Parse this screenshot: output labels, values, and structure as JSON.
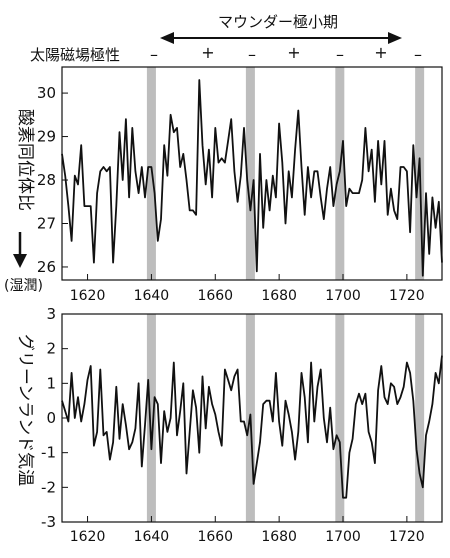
{
  "header": {
    "maunder_label": "マウンダー極小期",
    "polarity_label": "太陽磁場極性",
    "polarity_signs": [
      "–",
      "+",
      "–",
      "+",
      "–",
      "+",
      "–"
    ]
  },
  "chart_data": [
    {
      "type": "line",
      "ylabel": "酸素同位体比",
      "wet_label": "(湿潤)",
      "xlim": [
        1612,
        1731
      ],
      "ylim": [
        25.7,
        30.6
      ],
      "x_ticks": [
        1620,
        1640,
        1660,
        1680,
        1700,
        1720
      ],
      "y_ticks": [
        26,
        27,
        28,
        29,
        30
      ],
      "shaded_years": [
        1640,
        1671,
        1699,
        1724
      ],
      "x": [
        1612,
        1613,
        1614,
        1615,
        1616,
        1617,
        1618,
        1619,
        1620,
        1621,
        1622,
        1623,
        1624,
        1625,
        1626,
        1627,
        1628,
        1629,
        1630,
        1631,
        1632,
        1633,
        1634,
        1635,
        1636,
        1637,
        1638,
        1639,
        1640,
        1641,
        1642,
        1643,
        1644,
        1645,
        1646,
        1647,
        1648,
        1649,
        1650,
        1651,
        1652,
        1653,
        1654,
        1655,
        1656,
        1657,
        1658,
        1659,
        1660,
        1661,
        1662,
        1663,
        1664,
        1665,
        1666,
        1667,
        1668,
        1669,
        1670,
        1671,
        1672,
        1673,
        1674,
        1675,
        1676,
        1677,
        1678,
        1679,
        1680,
        1681,
        1682,
        1683,
        1684,
        1685,
        1686,
        1687,
        1688,
        1689,
        1690,
        1691,
        1692,
        1693,
        1694,
        1695,
        1696,
        1697,
        1698,
        1699,
        1700,
        1701,
        1702,
        1703,
        1704,
        1705,
        1706,
        1707,
        1708,
        1709,
        1710,
        1711,
        1712,
        1713,
        1714,
        1715,
        1716,
        1717,
        1718,
        1719,
        1720,
        1721,
        1722,
        1723,
        1724,
        1725,
        1726,
        1727,
        1728,
        1729,
        1730,
        1731
      ],
      "y": [
        28.6,
        28.1,
        27.4,
        26.6,
        28.1,
        27.9,
        28.8,
        27.4,
        27.4,
        27.4,
        26.1,
        27.7,
        28.2,
        28.3,
        28.2,
        28.3,
        26.1,
        27.4,
        29.1,
        28.0,
        29.4,
        27.6,
        29.2,
        28.2,
        27.7,
        28.3,
        27.6,
        28.3,
        28.3,
        27.7,
        26.6,
        27.1,
        28.8,
        28.1,
        29.5,
        29.1,
        29.2,
        28.3,
        28.6,
        28.0,
        27.3,
        27.3,
        27.2,
        30.3,
        28.8,
        27.9,
        28.7,
        27.6,
        29.2,
        28.4,
        28.5,
        28.4,
        28.9,
        29.4,
        28.2,
        27.5,
        28.1,
        29.2,
        28.0,
        27.3,
        28.0,
        25.9,
        28.6,
        26.9,
        28.0,
        27.3,
        28.1,
        27.6,
        29.3,
        28.4,
        27.0,
        28.2,
        27.6,
        28.7,
        29.6,
        28.3,
        27.2,
        28.3,
        27.6,
        28.2,
        28.2,
        27.6,
        27.1,
        27.8,
        28.3,
        27.4,
        27.9,
        28.2,
        28.9,
        27.4,
        27.8,
        27.7,
        27.7,
        27.7,
        28.0,
        29.2,
        28.2,
        28.7,
        27.5,
        28.9,
        27.9,
        28.9,
        27.2,
        27.8,
        27.3,
        27.1,
        28.3,
        28.3,
        28.2,
        26.8,
        28.8,
        27.6,
        28.5,
        25.8,
        27.7,
        26.3,
        27.6,
        26.9,
        27.5,
        26.1
      ]
    },
    {
      "type": "line",
      "ylabel": "グリーンランド気温",
      "xlim": [
        1612,
        1731
      ],
      "ylim": [
        -3,
        3
      ],
      "x_ticks": [
        1620,
        1640,
        1660,
        1680,
        1700,
        1720
      ],
      "y_ticks": [
        -3,
        -2,
        -1,
        0,
        1,
        2,
        3
      ],
      "shaded_years": [
        1640,
        1671,
        1699,
        1724
      ],
      "x": [
        1612,
        1613,
        1614,
        1615,
        1616,
        1617,
        1618,
        1619,
        1620,
        1621,
        1622,
        1623,
        1624,
        1625,
        1626,
        1627,
        1628,
        1629,
        1630,
        1631,
        1632,
        1633,
        1634,
        1635,
        1636,
        1637,
        1638,
        1639,
        1640,
        1641,
        1642,
        1643,
        1644,
        1645,
        1646,
        1647,
        1648,
        1649,
        1650,
        1651,
        1652,
        1653,
        1654,
        1655,
        1656,
        1657,
        1658,
        1659,
        1660,
        1661,
        1662,
        1663,
        1664,
        1665,
        1666,
        1667,
        1668,
        1669,
        1670,
        1671,
        1672,
        1673,
        1674,
        1675,
        1676,
        1677,
        1678,
        1679,
        1680,
        1681,
        1682,
        1683,
        1684,
        1685,
        1686,
        1687,
        1688,
        1689,
        1690,
        1691,
        1692,
        1693,
        1694,
        1695,
        1696,
        1697,
        1698,
        1699,
        1700,
        1701,
        1702,
        1703,
        1704,
        1705,
        1706,
        1707,
        1708,
        1709,
        1710,
        1711,
        1712,
        1713,
        1714,
        1715,
        1716,
        1717,
        1718,
        1719,
        1720,
        1721,
        1722,
        1723,
        1724,
        1725,
        1726,
        1727,
        1728,
        1729,
        1730,
        1731
      ],
      "y": [
        0.5,
        0.2,
        -0.1,
        1.3,
        0.0,
        0.6,
        -0.1,
        0.4,
        1.1,
        1.5,
        -0.8,
        -0.4,
        1.4,
        -0.5,
        -0.4,
        -1.2,
        -0.7,
        0.9,
        -0.6,
        0.4,
        -0.2,
        -0.9,
        -0.7,
        -0.3,
        1.0,
        -1.4,
        -0.2,
        1.1,
        -0.9,
        0.6,
        0.4,
        -1.3,
        0.2,
        -0.4,
        0.0,
        1.6,
        -0.5,
        0.2,
        1.0,
        -1.6,
        -0.4,
        0.8,
        0.3,
        -1.0,
        1.2,
        -0.3,
        0.9,
        0.4,
        0.1,
        -0.4,
        -0.8,
        1.4,
        1.1,
        0.8,
        1.2,
        1.4,
        -0.1,
        -0.1,
        -0.5,
        0.1,
        -1.9,
        -1.3,
        -0.7,
        0.4,
        0.5,
        0.5,
        -0.1,
        1.3,
        -0.1,
        -0.8,
        0.5,
        0.1,
        -0.4,
        -1.2,
        -0.4,
        1.3,
        0.6,
        -0.7,
        1.6,
        -0.1,
        0.9,
        1.4,
        0.0,
        -0.7,
        0.3,
        -0.9,
        -0.5,
        -0.7,
        -2.3,
        -2.3,
        -1.0,
        -0.6,
        0.4,
        0.7,
        0.4,
        0.7,
        -0.4,
        -0.7,
        -1.3,
        0.8,
        1.5,
        0.6,
        0.4,
        1.0,
        0.9,
        0.4,
        0.6,
        0.9,
        1.6,
        1.3,
        0.5,
        -0.9,
        -1.6,
        -2.0,
        -0.5,
        -0.1,
        0.4,
        1.3,
        1.0,
        1.8
      ]
    }
  ]
}
